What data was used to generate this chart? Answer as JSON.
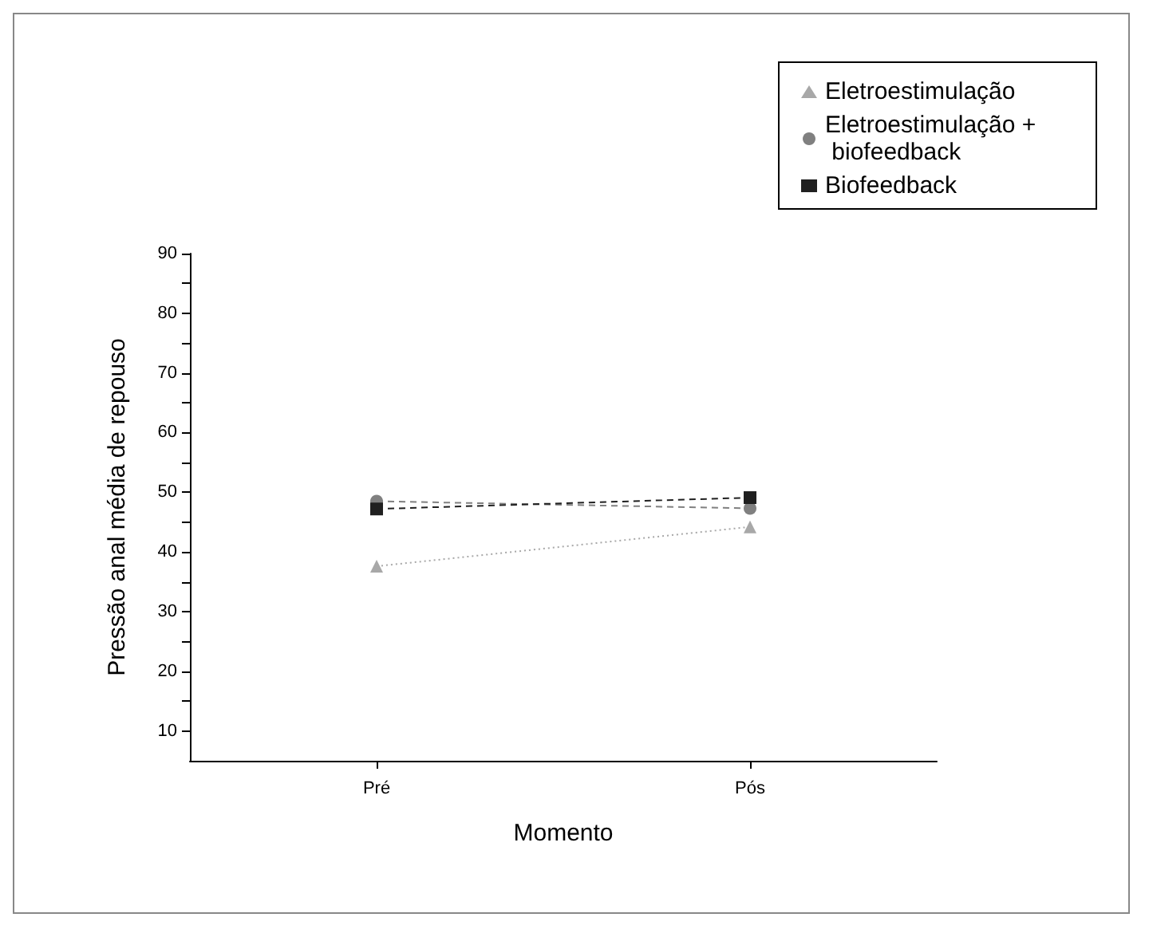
{
  "chart_data": {
    "type": "line",
    "xlabel": "Momento",
    "ylabel": "Pressão anal média de repouso",
    "categories": [
      "Pré",
      "Pós"
    ],
    "series": [
      {
        "name": "Eletroestimulação",
        "color": "#a8a8a8",
        "values": [
          37.6,
          44.2
        ],
        "marker": "triangle",
        "line_style": "dotted"
      },
      {
        "name": "Eletroestimulação + biofeedback",
        "color": "#808080",
        "values": [
          48.5,
          47.3
        ],
        "marker": "circle",
        "line_style": "dashed"
      },
      {
        "name": "Biofeedback",
        "color": "#202020",
        "values": [
          47.2,
          49.1
        ],
        "marker": "square",
        "line_style": "dashed"
      }
    ],
    "ylim": [
      5,
      90
    ],
    "yticks": [
      10,
      {
        "value": 15,
        "label": null
      },
      20,
      {
        "value": 25,
        "label": null
      },
      30,
      {
        "value": 35,
        "label": null
      },
      40,
      {
        "value": 45,
        "label": null
      },
      50,
      {
        "value": 55,
        "label": null
      },
      60,
      {
        "value": 65,
        "label": null
      },
      70,
      {
        "value": 75,
        "label": null
      },
      80,
      {
        "value": 85,
        "label": null
      },
      90
    ],
    "grid": false,
    "legend": "top right"
  }
}
